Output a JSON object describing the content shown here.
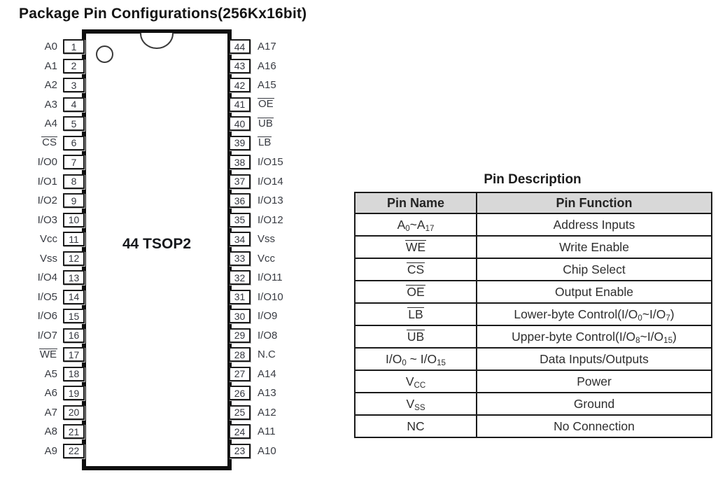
{
  "title": "Package Pin Configurations(256Kx16bit)",
  "chip": {
    "label": "44 TSOP2",
    "left_pins": [
      {
        "num": "1",
        "name": "A0"
      },
      {
        "num": "2",
        "name": "A1"
      },
      {
        "num": "3",
        "name": "A2"
      },
      {
        "num": "4",
        "name": "A3"
      },
      {
        "num": "5",
        "name": "A4"
      },
      {
        "num": "6",
        "name": "^{CS}"
      },
      {
        "num": "7",
        "name": "I/O0"
      },
      {
        "num": "8",
        "name": "I/O1"
      },
      {
        "num": "9",
        "name": "I/O2"
      },
      {
        "num": "10",
        "name": "I/O3"
      },
      {
        "num": "11",
        "name": "Vcc"
      },
      {
        "num": "12",
        "name": "Vss"
      },
      {
        "num": "13",
        "name": "I/O4"
      },
      {
        "num": "14",
        "name": "I/O5"
      },
      {
        "num": "15",
        "name": "I/O6"
      },
      {
        "num": "16",
        "name": "I/O7"
      },
      {
        "num": "17",
        "name": "^{WE}"
      },
      {
        "num": "18",
        "name": "A5"
      },
      {
        "num": "19",
        "name": "A6"
      },
      {
        "num": "20",
        "name": "A7"
      },
      {
        "num": "21",
        "name": "A8"
      },
      {
        "num": "22",
        "name": "A9"
      }
    ],
    "right_pins": [
      {
        "num": "44",
        "name": "A17"
      },
      {
        "num": "43",
        "name": "A16"
      },
      {
        "num": "42",
        "name": "A15"
      },
      {
        "num": "41",
        "name": "^{OE}"
      },
      {
        "num": "40",
        "name": "^{UB}"
      },
      {
        "num": "39",
        "name": "^{LB}"
      },
      {
        "num": "38",
        "name": "I/O15"
      },
      {
        "num": "37",
        "name": "I/O14"
      },
      {
        "num": "36",
        "name": "I/O13"
      },
      {
        "num": "35",
        "name": "I/O12"
      },
      {
        "num": "34",
        "name": "Vss"
      },
      {
        "num": "33",
        "name": "Vcc"
      },
      {
        "num": "32",
        "name": "I/O11"
      },
      {
        "num": "31",
        "name": "I/O10"
      },
      {
        "num": "30",
        "name": "I/O9"
      },
      {
        "num": "29",
        "name": "I/O8"
      },
      {
        "num": "28",
        "name": "N.C"
      },
      {
        "num": "27",
        "name": "A14"
      },
      {
        "num": "26",
        "name": "A13"
      },
      {
        "num": "25",
        "name": "A12"
      },
      {
        "num": "24",
        "name": "A11"
      },
      {
        "num": "23",
        "name": "A10"
      }
    ]
  },
  "table": {
    "title": "Pin Description",
    "headers": [
      "Pin Name",
      "Pin Function"
    ],
    "header_bg": "#d8d8d8",
    "rows": [
      {
        "name": "A_{0}~A_{17}",
        "function": "Address Inputs"
      },
      {
        "name": "^{WE}",
        "function": "Write Enable"
      },
      {
        "name": "^{CS}",
        "function": "Chip Select"
      },
      {
        "name": "^{OE}",
        "function": "Output Enable"
      },
      {
        "name": "^{LB}",
        "function": "Lower-byte Control(I/O_{0}~I/O_{7})"
      },
      {
        "name": "^{UB}",
        "function": "Upper-byte Control(I/O_{8}~I/O_{15})"
      },
      {
        "name": "I/O_{0} ~ I/O_{15}",
        "function": "Data Inputs/Outputs"
      },
      {
        "name": "V_{CC}",
        "function": "Power"
      },
      {
        "name": "V_{SS}",
        "function": "Ground"
      },
      {
        "name": "NC",
        "function": "No Connection"
      }
    ]
  }
}
